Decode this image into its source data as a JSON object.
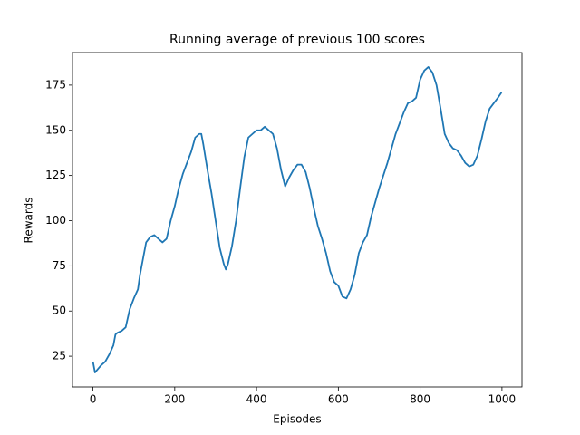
{
  "chart_data": {
    "type": "line",
    "title": "Running average of previous 100 scores",
    "x_label": "Episodes",
    "y_label": "Rewards",
    "x": [
      0,
      5,
      20,
      30,
      40,
      50,
      55,
      60,
      70,
      80,
      90,
      100,
      110,
      115,
      120,
      130,
      140,
      150,
      160,
      170,
      180,
      190,
      200,
      210,
      220,
      230,
      240,
      250,
      260,
      265,
      270,
      280,
      290,
      300,
      310,
      320,
      325,
      330,
      340,
      350,
      360,
      370,
      380,
      390,
      400,
      410,
      420,
      430,
      440,
      450,
      460,
      470,
      480,
      490,
      500,
      510,
      520,
      530,
      540,
      550,
      560,
      570,
      580,
      590,
      600,
      610,
      620,
      630,
      640,
      650,
      660,
      670,
      680,
      690,
      700,
      710,
      720,
      730,
      740,
      750,
      760,
      770,
      780,
      790,
      800,
      810,
      820,
      830,
      840,
      850,
      860,
      870,
      880,
      890,
      900,
      910,
      920,
      930,
      940,
      950,
      960,
      970,
      980,
      990,
      999
    ],
    "series": [
      {
        "name": "Running average",
        "color": "#1f77b4",
        "values": [
          22,
          16,
          20,
          22,
          26,
          31,
          37,
          38,
          39,
          41,
          51,
          57,
          62,
          70,
          76,
          88,
          91,
          92,
          90,
          88,
          90,
          100,
          108,
          118,
          126,
          132,
          138,
          146,
          148,
          148,
          142,
          128,
          115,
          100,
          85,
          76,
          73,
          76,
          86,
          100,
          118,
          135,
          146,
          148,
          150,
          150,
          152,
          150,
          148,
          140,
          128,
          119,
          124,
          128,
          131,
          131,
          127,
          118,
          107,
          97,
          90,
          82,
          72,
          66,
          64,
          58,
          57,
          62,
          70,
          82,
          88,
          92,
          102,
          110,
          118,
          125,
          132,
          140,
          148,
          154,
          160,
          165,
          166,
          168,
          178,
          183,
          185,
          182,
          175,
          162,
          148,
          143,
          140,
          139,
          136,
          132,
          130,
          131,
          136,
          145,
          155,
          162,
          165,
          168,
          171
        ]
      }
    ],
    "xlim": [
      -50,
      1049
    ],
    "ylim": [
      8,
      193
    ],
    "xticks": [
      0,
      200,
      400,
      600,
      800,
      1000
    ],
    "yticks": [
      25,
      50,
      75,
      100,
      125,
      150,
      175
    ]
  }
}
